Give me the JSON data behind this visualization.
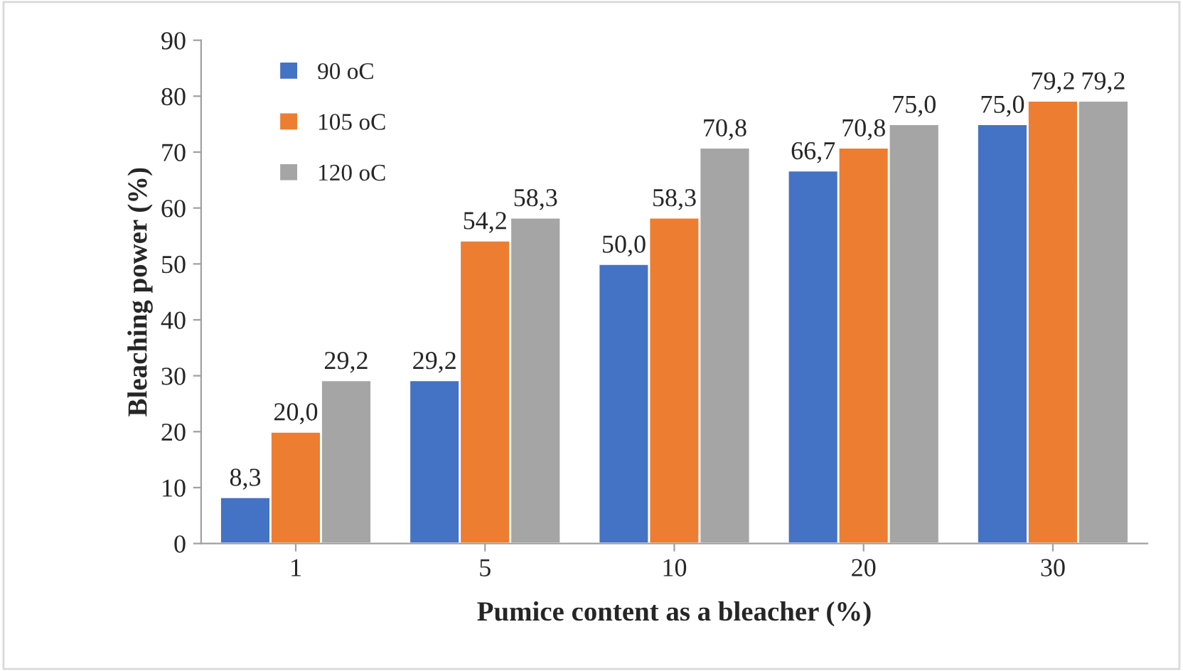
{
  "chart_data": {
    "type": "bar",
    "xlabel": "Pumice content as a bleacher (%)",
    "ylabel": "Bleaching power (%)",
    "categories": [
      "1",
      "5",
      "10",
      "20",
      "30"
    ],
    "series": [
      {
        "name": "90 oC",
        "color": "#4472c4",
        "values": [
          8.3,
          29.2,
          50.0,
          66.7,
          75.0
        ],
        "value_labels": [
          "8,3",
          "29,2",
          "50,0",
          "66,7",
          "75,0"
        ]
      },
      {
        "name": "105 oC",
        "color": "#ed7d31",
        "values": [
          20.0,
          54.2,
          58.3,
          70.8,
          79.2
        ],
        "value_labels": [
          "20,0",
          "54,2",
          "58,3",
          "70,8",
          "79,2"
        ]
      },
      {
        "name": "120 oC",
        "color": "#a5a5a5",
        "values": [
          29.2,
          58.3,
          70.8,
          75.0,
          79.2
        ],
        "value_labels": [
          "29,2",
          "58,3",
          "70,8",
          "75,0",
          "79,2"
        ]
      }
    ],
    "ylim": [
      0,
      90
    ],
    "yticks": [
      0,
      10,
      20,
      30,
      40,
      50,
      60,
      70,
      80,
      90
    ],
    "grid": false,
    "legend": "top left"
  }
}
